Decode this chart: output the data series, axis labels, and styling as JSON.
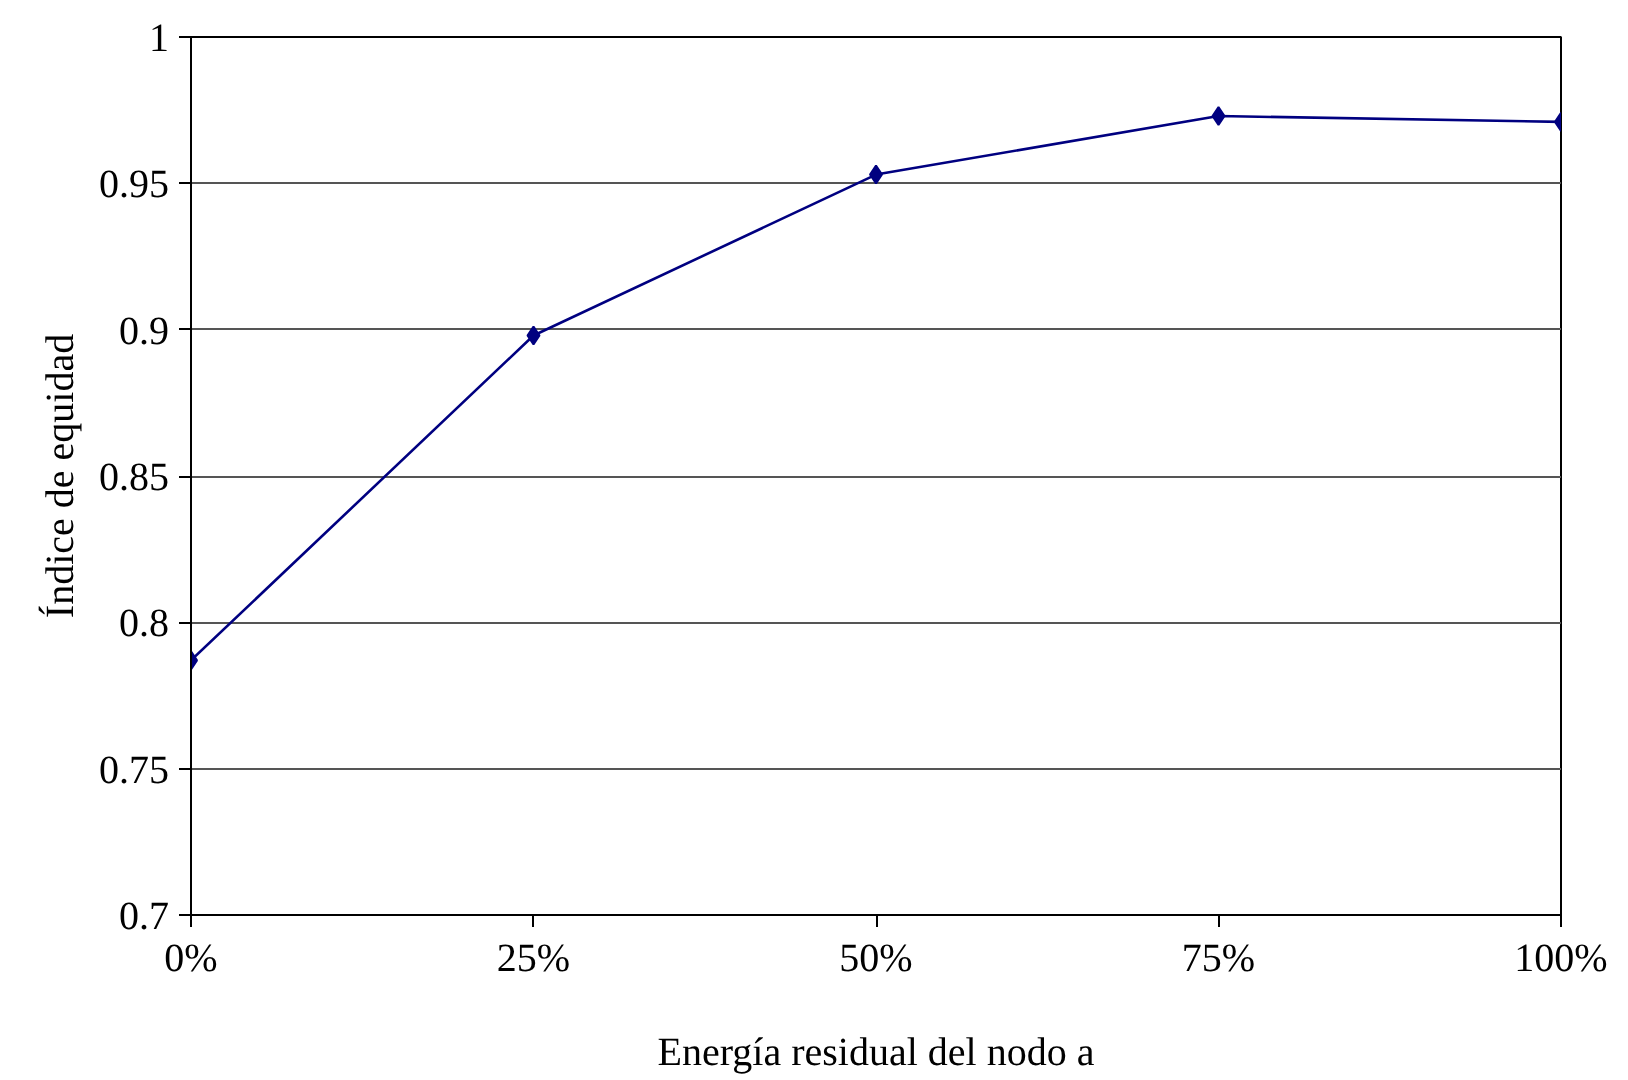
{
  "chart_data": {
    "type": "line",
    "xlabel": "Energía residual del nodo a",
    "ylabel": "Índice de equidad",
    "x": [
      0,
      25,
      50,
      75,
      100
    ],
    "series": [
      {
        "color": "#000080",
        "values": [
          0.787,
          0.898,
          0.953,
          0.973,
          0.971
        ]
      }
    ],
    "xlim": [
      0,
      100
    ],
    "xticks": [
      {
        "value": 0,
        "label": "0%"
      },
      {
        "value": 25,
        "label": "25%"
      },
      {
        "value": 50,
        "label": "50%"
      },
      {
        "value": 75,
        "label": "75%"
      },
      {
        "value": 100,
        "label": "100%"
      }
    ],
    "ylim": [
      0.7,
      1
    ],
    "yticks": [
      0.7,
      0.75,
      0.8,
      0.85,
      0.9,
      0.95,
      1
    ],
    "grid": "y",
    "marker": "diamond",
    "line_style": "solid"
  }
}
